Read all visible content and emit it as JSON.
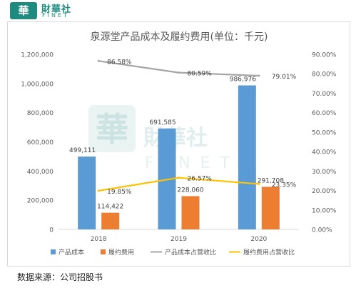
{
  "header": {
    "logo_mark": "華",
    "logo_cn": "財華社",
    "logo_en": "FINET"
  },
  "watermark": {
    "mark": "華",
    "cn": "財華社",
    "en": "FINET"
  },
  "chart_data": {
    "type": "bar",
    "title": "泉源堂产品成本及履约费用(单位：千元)",
    "categories": [
      "2018",
      "2019",
      "2020"
    ],
    "series": [
      {
        "name": "产品成本",
        "kind": "bar",
        "axis": "left",
        "color": "#5b9bd5",
        "values": [
          499111,
          691585,
          986976
        ],
        "labels": [
          "499,111",
          "691,585",
          "986,976"
        ]
      },
      {
        "name": "履约费用",
        "kind": "bar",
        "axis": "left",
        "color": "#ed7d31",
        "values": [
          114422,
          228060,
          291708
        ],
        "labels": [
          "114,422",
          "228,060",
          "291,708"
        ]
      },
      {
        "name": "产品成本占营收比",
        "kind": "line",
        "axis": "right",
        "color": "#a5a5a5",
        "values": [
          86.58,
          80.59,
          79.01
        ],
        "labels": [
          "86.58%",
          "80.59%",
          "79.01%"
        ]
      },
      {
        "name": "履约费用占营收比",
        "kind": "line",
        "axis": "right",
        "color": "#ffc000",
        "values": [
          19.85,
          26.57,
          23.35
        ],
        "labels": [
          "19.85%",
          "26.57%",
          "23.35%"
        ]
      }
    ],
    "y_left": {
      "min": 0,
      "max": 1200000,
      "step": 200000,
      "ticks": [
        "0",
        "200,000",
        "400,000",
        "600,000",
        "800,000",
        "1,000,000",
        "1,200,000"
      ]
    },
    "y_right": {
      "min": 0,
      "max": 90,
      "step": 10,
      "ticks": [
        "0.00%",
        "10.00%",
        "20.00%",
        "30.00%",
        "40.00%",
        "50.00%",
        "60.00%",
        "70.00%",
        "80.00%",
        "90.00%"
      ]
    },
    "grid": false,
    "legend_position": "bottom"
  },
  "source": "数据来源：公司招股书"
}
